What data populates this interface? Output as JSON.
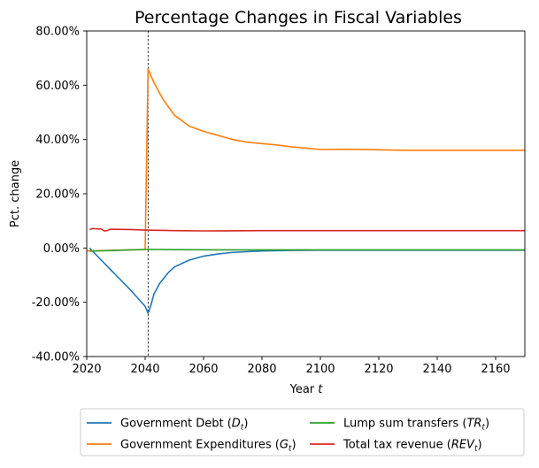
{
  "chart_data": {
    "type": "line",
    "title": "Percentage Changes in Fiscal Variables",
    "xlabel": "Year t",
    "ylabel": "Pct. change",
    "xlim": [
      2020,
      2170
    ],
    "ylim": [
      -40,
      80
    ],
    "x_ticks": [
      2020,
      2040,
      2060,
      2080,
      2100,
      2120,
      2140,
      2160
    ],
    "y_ticks": [
      -40,
      -20,
      0,
      20,
      40,
      60,
      80
    ],
    "y_tick_labels": [
      "-40.00%",
      "-20.00%",
      "0.00%",
      "20.00%",
      "40.00%",
      "60.00%",
      "80.00%"
    ],
    "grid": false,
    "legend_position": "below-center",
    "reference_line": {
      "x": 2041,
      "style": "dashed",
      "color": "#000000"
    },
    "series": [
      {
        "name": "Government Debt (D_t)",
        "label_main": "Government Debt (",
        "label_sym": "D",
        "label_sub": "t",
        "color": "#1f77b4",
        "x": [
          2021,
          2025,
          2030,
          2035,
          2040,
          2041,
          2042,
          2043,
          2045,
          2048,
          2050,
          2055,
          2060,
          2065,
          2070,
          2080,
          2090,
          2100,
          2120,
          2140,
          2170
        ],
        "y": [
          0,
          -4.5,
          -10,
          -15.5,
          -21.5,
          -24,
          -21,
          -17,
          -13,
          -9,
          -7,
          -4.5,
          -3,
          -2.2,
          -1.6,
          -1.1,
          -0.9,
          -0.8,
          -0.8,
          -0.8,
          -0.8
        ]
      },
      {
        "name": "Government Expenditures (G_t)",
        "label_main": "Government Expenditures (",
        "label_sym": "G",
        "label_sub": "t",
        "color": "#ff7f0e",
        "x": [
          2020,
          2025,
          2030,
          2035,
          2039.5,
          2040,
          2041,
          2043,
          2046,
          2050,
          2055,
          2060,
          2065,
          2070,
          2075,
          2080,
          2085,
          2090,
          2095,
          2100,
          2110,
          2120,
          2130,
          2140,
          2150,
          2160,
          2170
        ],
        "y": [
          -1,
          -1,
          -0.8,
          -0.7,
          -0.6,
          -0.5,
          66,
          61,
          55,
          49,
          45,
          43,
          41.5,
          40,
          39,
          38.5,
          38,
          37.3,
          36.8,
          36.3,
          36.4,
          36.2,
          36,
          36,
          36,
          36,
          36
        ]
      },
      {
        "name": "Lump sum transfers (TR_t)",
        "label_main": "Lump sum transfers (",
        "label_sym": "TR",
        "label_sub": "t",
        "color": "#2ca02c",
        "x": [
          2021,
          2025,
          2030,
          2035,
          2041,
          2050,
          2070,
          2100,
          2140,
          2170
        ],
        "y": [
          -1.2,
          -1.0,
          -0.9,
          -0.7,
          -0.5,
          -0.6,
          -0.7,
          -0.7,
          -0.7,
          -0.7
        ]
      },
      {
        "name": "Total tax revenue (REV_t)",
        "label_main": "Total tax revenue (",
        "label_sym": "REV",
        "label_sub": "t",
        "color": "#d62728",
        "x": [
          2021,
          2022,
          2024,
          2025,
          2026,
          2027,
          2028,
          2030,
          2035,
          2040,
          2050,
          2060,
          2080,
          2100,
          2140,
          2170
        ],
        "y": [
          6.8,
          7.2,
          7.0,
          7.0,
          6.3,
          6.4,
          6.9,
          6.9,
          6.8,
          6.6,
          6.4,
          6.3,
          6.4,
          6.4,
          6.4,
          6.4
        ]
      }
    ]
  }
}
